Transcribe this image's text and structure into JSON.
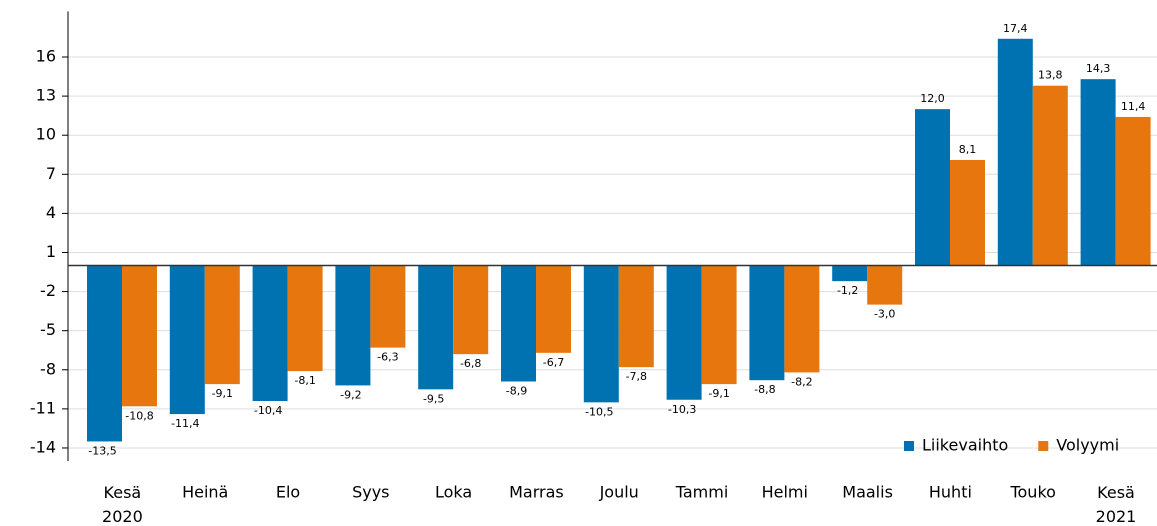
{
  "chart_data": {
    "type": "bar",
    "categories": [
      "Kesä 2020",
      "Heinä",
      "Elo",
      "Syys",
      "Loka",
      "Marras",
      "Joulu",
      "Tammi",
      "Helmi",
      "Maalis",
      "Huhti",
      "Touko",
      "Kesä 2021"
    ],
    "series": [
      {
        "name": "Liikevaihto",
        "color": "#0072b2",
        "values": [
          -13.5,
          -11.4,
          -10.4,
          -9.2,
          -9.5,
          -8.9,
          -10.5,
          -10.3,
          -8.8,
          -1.2,
          12.0,
          17.4,
          14.3
        ],
        "value_labels": [
          "-13,5",
          "-11,4",
          "-10,4",
          "-9,2",
          "-9,5",
          "-8,9",
          "-10,5",
          "-10,3",
          "-8,8",
          "-1,2",
          "12,0",
          "17,4",
          "14,3"
        ]
      },
      {
        "name": "Volyymi",
        "color": "#e8760f",
        "values": [
          -10.8,
          -9.1,
          -8.1,
          -6.3,
          -6.8,
          -6.7,
          -7.8,
          -9.1,
          -8.2,
          -3.0,
          8.1,
          13.8,
          11.4
        ],
        "value_labels": [
          "-10,8",
          "-9,1",
          "-8,1",
          "-6,3",
          "-6,8",
          "-6,7",
          "-7,8",
          "-9,1",
          "-8,2",
          "-3,0",
          "8,1",
          "13,8",
          "11,4"
        ]
      }
    ],
    "ylim": [
      -15,
      19.5
    ],
    "yticks": [
      16,
      13,
      10,
      7,
      4,
      1,
      -2,
      -5,
      -8,
      -11,
      -14
    ],
    "grid": true,
    "legend": "lower right"
  }
}
